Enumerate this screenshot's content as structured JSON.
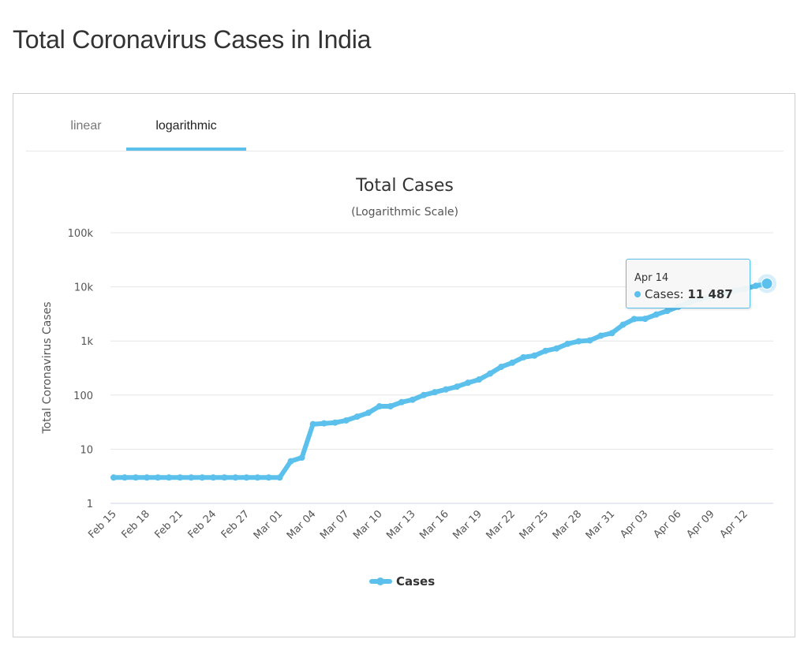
{
  "page": {
    "title": "Total Coronavirus Cases in India"
  },
  "tabs": [
    {
      "label": "linear",
      "active": false
    },
    {
      "label": "logarithmic",
      "active": true
    }
  ],
  "tooltip": {
    "date": "Apr 14",
    "series": "Cases",
    "value": "11 487"
  },
  "colors": {
    "series": "#5bc0eb",
    "grid": "#e6e6e6",
    "axis": "#ccd6eb"
  },
  "chart_data": {
    "type": "line",
    "title": "Total Cases",
    "subtitle": "(Logarithmic Scale)",
    "ylabel": "Total Coronavirus Cases",
    "xlabel": "",
    "y_scale": "log",
    "ylim": [
      1,
      100000
    ],
    "y_ticks": [
      {
        "value": 1,
        "label": "1"
      },
      {
        "value": 10,
        "label": "10"
      },
      {
        "value": 100,
        "label": "100"
      },
      {
        "value": 1000,
        "label": "1k"
      },
      {
        "value": 10000,
        "label": "10k"
      },
      {
        "value": 100000,
        "label": "100k"
      }
    ],
    "x_tick_labels": [
      "Feb 15",
      "Feb 18",
      "Feb 21",
      "Feb 24",
      "Feb 27",
      "Mar 01",
      "Mar 04",
      "Mar 07",
      "Mar 10",
      "Mar 13",
      "Mar 16",
      "Mar 19",
      "Mar 22",
      "Mar 25",
      "Mar 28",
      "Mar 31",
      "Apr 03",
      "Apr 06",
      "Apr 09",
      "Apr 12"
    ],
    "legend_position": "bottom-center",
    "grid": true,
    "series": [
      {
        "name": "Cases",
        "x": [
          "Feb 15",
          "Feb 16",
          "Feb 17",
          "Feb 18",
          "Feb 19",
          "Feb 20",
          "Feb 21",
          "Feb 22",
          "Feb 23",
          "Feb 24",
          "Feb 25",
          "Feb 26",
          "Feb 27",
          "Feb 28",
          "Feb 29",
          "Mar 01",
          "Mar 02",
          "Mar 03",
          "Mar 04",
          "Mar 05",
          "Mar 06",
          "Mar 07",
          "Mar 08",
          "Mar 09",
          "Mar 10",
          "Mar 11",
          "Mar 12",
          "Mar 13",
          "Mar 14",
          "Mar 15",
          "Mar 16",
          "Mar 17",
          "Mar 18",
          "Mar 19",
          "Mar 20",
          "Mar 21",
          "Mar 22",
          "Mar 23",
          "Mar 24",
          "Mar 25",
          "Mar 26",
          "Mar 27",
          "Mar 28",
          "Mar 29",
          "Mar 30",
          "Mar 31",
          "Apr 01",
          "Apr 02",
          "Apr 03",
          "Apr 04",
          "Apr 05",
          "Apr 06",
          "Apr 07",
          "Apr 08",
          "Apr 09",
          "Apr 10",
          "Apr 11",
          "Apr 12",
          "Apr 13",
          "Apr 14"
        ],
        "values": [
          3,
          3,
          3,
          3,
          3,
          3,
          3,
          3,
          3,
          3,
          3,
          3,
          3,
          3,
          3,
          3,
          6,
          7,
          29,
          30,
          31,
          34,
          40,
          47,
          62,
          62,
          74,
          82,
          100,
          113,
          127,
          143,
          169,
          194,
          250,
          332,
          396,
          499,
          536,
          657,
          727,
          887,
          987,
          1024,
          1251,
          1397,
          1998,
          2543,
          2567,
          3082,
          3588,
          4289,
          5189,
          6000,
          6761,
          7600,
          8446,
          9205,
          10453,
          11487
        ]
      }
    ]
  }
}
